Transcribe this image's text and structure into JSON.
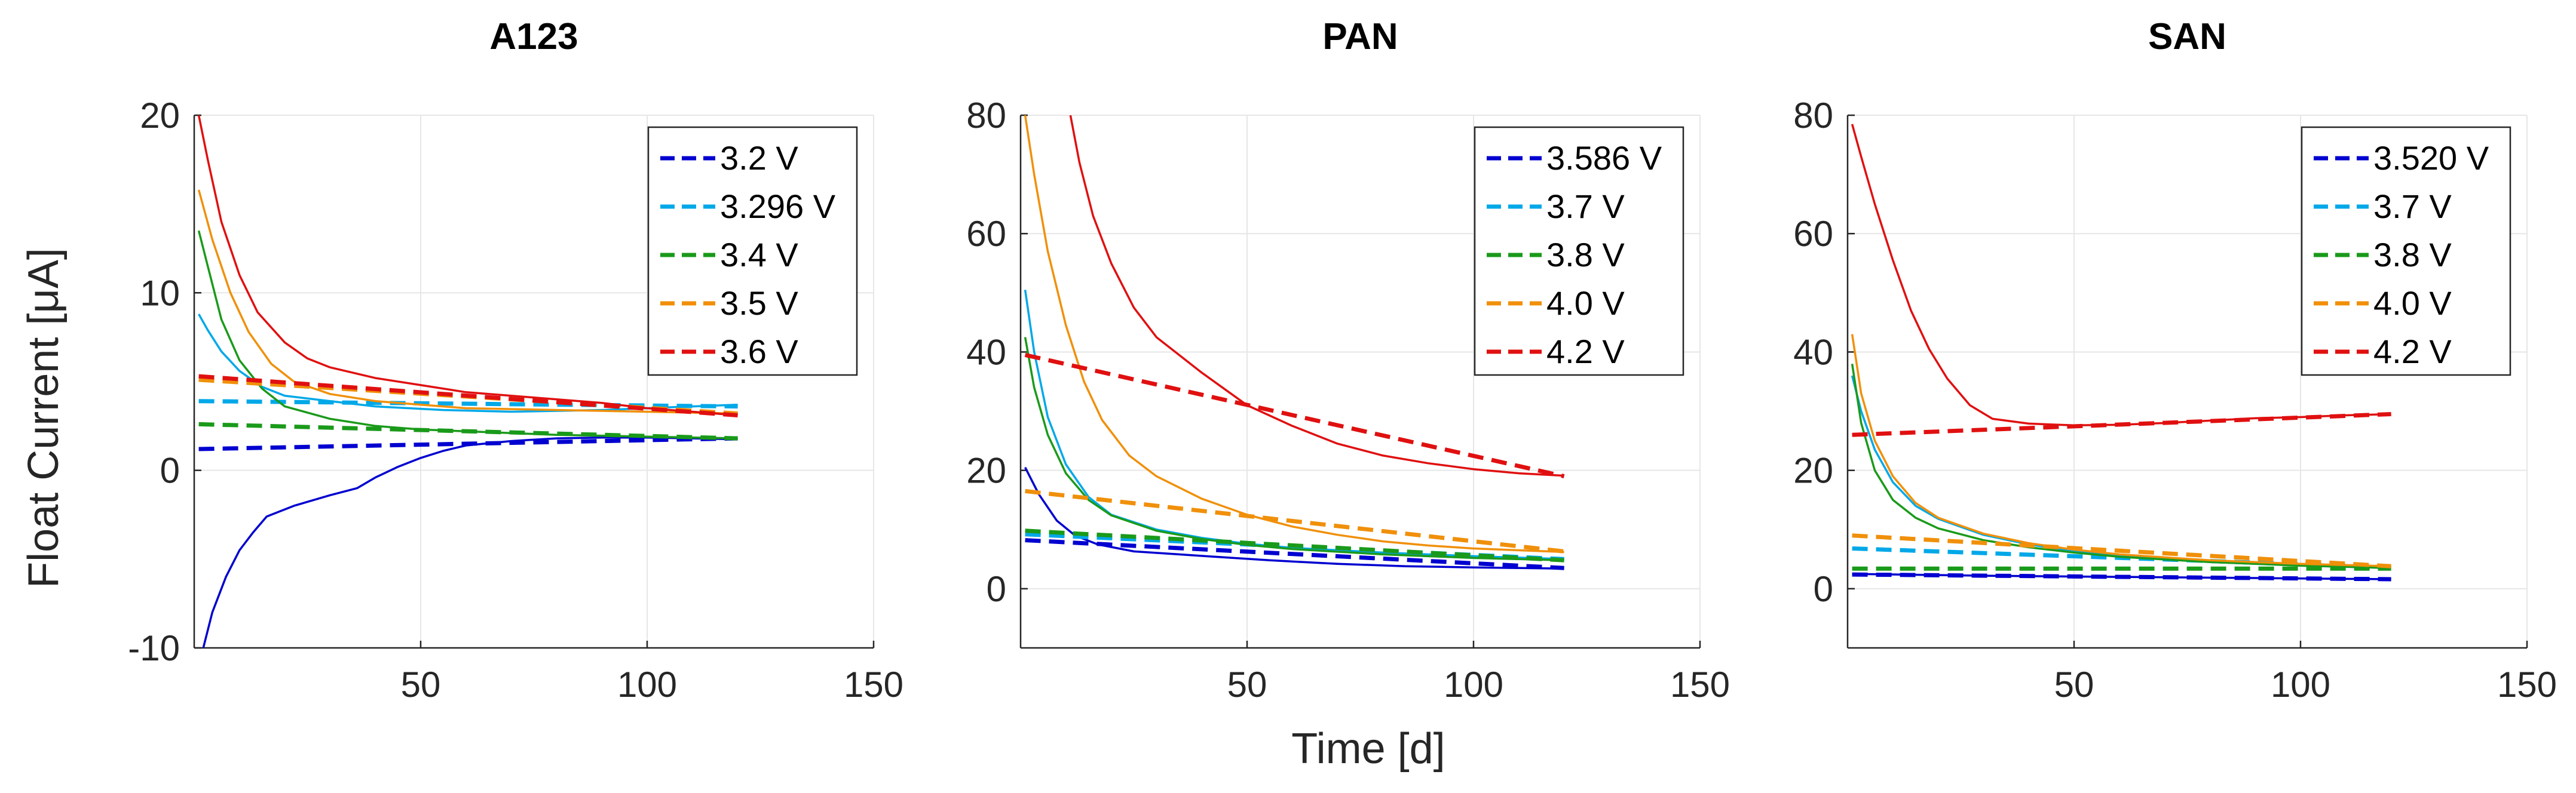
{
  "figure": {
    "xlabel": "Time [d]",
    "ylabel": "Float Current [μA]"
  },
  "chart_data": [
    {
      "type": "line",
      "title": "A123",
      "xlim": [
        0,
        150
      ],
      "ylim": [
        -10,
        20
      ],
      "xticks": [
        50,
        100,
        150
      ],
      "yticks": [
        -10,
        0,
        10,
        20
      ],
      "grid": true,
      "legend_position": "top-right",
      "series": [
        {
          "name": "3.2 V",
          "color": "#0000d0",
          "fit": [
            [
              1,
              1.2
            ],
            [
              120,
              1.8
            ]
          ],
          "measured": [
            [
              2,
              -10
            ],
            [
              4,
              -8
            ],
            [
              7,
              -6
            ],
            [
              10,
              -4.5
            ],
            [
              13,
              -3.5
            ],
            [
              16,
              -2.6
            ],
            [
              22,
              -2.0
            ],
            [
              30,
              -1.4
            ],
            [
              36,
              -1.0
            ],
            [
              40,
              -0.4
            ],
            [
              45,
              0.2
            ],
            [
              50,
              0.7
            ],
            [
              55,
              1.1
            ],
            [
              60,
              1.4
            ],
            [
              70,
              1.65
            ],
            [
              80,
              1.8
            ],
            [
              90,
              1.85
            ],
            [
              100,
              1.85
            ],
            [
              110,
              1.8
            ],
            [
              120,
              1.75
            ]
          ]
        },
        {
          "name": "3.296 V",
          "color": "#00a8e8",
          "fit": [
            [
              1,
              3.9
            ],
            [
              120,
              3.6
            ]
          ],
          "measured": [
            [
              1,
              8.8
            ],
            [
              3,
              7.9
            ],
            [
              6,
              6.7
            ],
            [
              10,
              5.6
            ],
            [
              15,
              4.7
            ],
            [
              20,
              4.2
            ],
            [
              30,
              3.9
            ],
            [
              40,
              3.6
            ],
            [
              55,
              3.4
            ],
            [
              70,
              3.3
            ],
            [
              90,
              3.4
            ],
            [
              100,
              3.5
            ],
            [
              110,
              3.6
            ],
            [
              120,
              3.7
            ]
          ]
        },
        {
          "name": "3.4 V",
          "color": "#1a9a1a",
          "fit": [
            [
              1,
              2.6
            ],
            [
              120,
              1.8
            ]
          ],
          "measured": [
            [
              1,
              13.5
            ],
            [
              3,
              11.5
            ],
            [
              6,
              8.5
            ],
            [
              10,
              6.2
            ],
            [
              15,
              4.6
            ],
            [
              20,
              3.6
            ],
            [
              30,
              2.9
            ],
            [
              40,
              2.5
            ],
            [
              50,
              2.3
            ],
            [
              60,
              2.2
            ],
            [
              80,
              2.0
            ],
            [
              100,
              1.9
            ],
            [
              120,
              1.8
            ]
          ]
        },
        {
          "name": "3.5 V",
          "color": "#f0900a",
          "fit": [
            [
              1,
              5.1
            ],
            [
              120,
              3.2
            ]
          ],
          "measured": [
            [
              1,
              15.8
            ],
            [
              4,
              13.0
            ],
            [
              8,
              10.0
            ],
            [
              12,
              7.8
            ],
            [
              17,
              6.0
            ],
            [
              22,
              5.0
            ],
            [
              30,
              4.3
            ],
            [
              40,
              3.9
            ],
            [
              50,
              3.7
            ],
            [
              60,
              3.5
            ],
            [
              80,
              3.4
            ],
            [
              100,
              3.3
            ],
            [
              120,
              3.2
            ]
          ]
        },
        {
          "name": "3.6 V",
          "color": "#e01010",
          "fit": [
            [
              1,
              5.3
            ],
            [
              120,
              3.1
            ]
          ],
          "measured": [
            [
              1,
              20
            ],
            [
              3,
              17.5
            ],
            [
              6,
              14.0
            ],
            [
              10,
              11.0
            ],
            [
              14,
              8.9
            ],
            [
              20,
              7.2
            ],
            [
              25,
              6.3
            ],
            [
              30,
              5.8
            ],
            [
              40,
              5.2
            ],
            [
              50,
              4.8
            ],
            [
              60,
              4.4
            ],
            [
              70,
              4.2
            ],
            [
              80,
              4.0
            ],
            [
              90,
              3.8
            ],
            [
              100,
              3.5
            ],
            [
              110,
              3.3
            ],
            [
              120,
              3.1
            ]
          ]
        }
      ]
    },
    {
      "type": "line",
      "title": "PAN",
      "xlim": [
        0,
        150
      ],
      "ylim": [
        -10,
        80
      ],
      "xticks": [
        50,
        100,
        150
      ],
      "yticks": [
        0,
        20,
        40,
        60,
        80
      ],
      "grid": true,
      "legend_position": "top-right",
      "series": [
        {
          "name": "3.586 V",
          "color": "#0000d0",
          "fit": [
            [
              1,
              8.2
            ],
            [
              120,
              3.5
            ]
          ],
          "measured": [
            [
              1,
              20.5
            ],
            [
              4,
              16
            ],
            [
              8,
              11.5
            ],
            [
              12,
              9
            ],
            [
              17,
              7.5
            ],
            [
              25,
              6.3
            ],
            [
              35,
              5.8
            ],
            [
              45,
              5.3
            ],
            [
              55,
              4.8
            ],
            [
              70,
              4.2
            ],
            [
              85,
              3.8
            ],
            [
              100,
              3.6
            ],
            [
              120,
              3.4
            ]
          ]
        },
        {
          "name": "3.7 V",
          "color": "#00a8e8",
          "fit": [
            [
              1,
              9.2
            ],
            [
              120,
              5.0
            ]
          ],
          "measured": [
            [
              1,
              50.5
            ],
            [
              3,
              40
            ],
            [
              6,
              29
            ],
            [
              10,
              21
            ],
            [
              15,
              15.5
            ],
            [
              20,
              12.5
            ],
            [
              30,
              10
            ],
            [
              40,
              8.6
            ],
            [
              50,
              7.6
            ],
            [
              60,
              6.9
            ],
            [
              80,
              6.1
            ],
            [
              100,
              5.5
            ],
            [
              120,
              5.0
            ]
          ]
        },
        {
          "name": "3.8 V",
          "color": "#1a9a1a",
          "fit": [
            [
              1,
              9.8
            ],
            [
              120,
              4.8
            ]
          ],
          "measured": [
            [
              1,
              42.5
            ],
            [
              3,
              34
            ],
            [
              6,
              26
            ],
            [
              10,
              19.5
            ],
            [
              15,
              15
            ],
            [
              20,
              12.4
            ],
            [
              30,
              9.8
            ],
            [
              40,
              8.4
            ],
            [
              50,
              7.4
            ],
            [
              60,
              6.7
            ],
            [
              80,
              5.8
            ],
            [
              100,
              5.2
            ],
            [
              120,
              4.8
            ]
          ]
        },
        {
          "name": "4.0 V",
          "color": "#f0900a",
          "fit": [
            [
              1,
              16.5
            ],
            [
              120,
              6.3
            ]
          ],
          "measured": [
            [
              1,
              80
            ],
            [
              3,
              70
            ],
            [
              6,
              57
            ],
            [
              10,
              44.5
            ],
            [
              14,
              35
            ],
            [
              18,
              28.5
            ],
            [
              24,
              22.5
            ],
            [
              30,
              19
            ],
            [
              40,
              15.2
            ],
            [
              50,
              12.5
            ],
            [
              60,
              10.5
            ],
            [
              70,
              9.1
            ],
            [
              80,
              8.0
            ],
            [
              90,
              7.3
            ],
            [
              100,
              6.8
            ],
            [
              110,
              6.5
            ],
            [
              120,
              6.2
            ]
          ]
        },
        {
          "name": "4.2 V",
          "color": "#e01010",
          "fit": [
            [
              1,
              39.5
            ],
            [
              120,
              19
            ]
          ],
          "measured": [
            [
              11,
              80
            ],
            [
              13,
              72
            ],
            [
              16,
              63
            ],
            [
              20,
              55
            ],
            [
              25,
              47.5
            ],
            [
              30,
              42.5
            ],
            [
              40,
              36.5
            ],
            [
              50,
              31
            ],
            [
              60,
              27.5
            ],
            [
              70,
              24.5
            ],
            [
              80,
              22.5
            ],
            [
              90,
              21.2
            ],
            [
              100,
              20.2
            ],
            [
              110,
              19.5
            ],
            [
              120,
              19.1
            ]
          ]
        }
      ]
    },
    {
      "type": "line",
      "title": "SAN",
      "xlim": [
        0,
        150
      ],
      "ylim": [
        -10,
        80
      ],
      "xticks": [
        50,
        100,
        150
      ],
      "yticks": [
        0,
        20,
        40,
        60,
        80
      ],
      "grid": true,
      "legend_position": "top-right",
      "series": [
        {
          "name": "3.520 V",
          "color": "#0000d0",
          "fit": [
            [
              1,
              2.4
            ],
            [
              120,
              1.6
            ]
          ],
          "measured": [
            [
              1,
              2.5
            ],
            [
              30,
              2.2
            ],
            [
              60,
              2.0
            ],
            [
              90,
              1.8
            ],
            [
              120,
              1.6
            ]
          ]
        },
        {
          "name": "3.7 V",
          "color": "#00a8e8",
          "fit": [
            [
              1,
              6.8
            ],
            [
              120,
              3.6
            ]
          ],
          "measured": [
            [
              1,
              36
            ],
            [
              3,
              30
            ],
            [
              6,
              23.5
            ],
            [
              10,
              18
            ],
            [
              15,
              14
            ],
            [
              20,
              11.8
            ],
            [
              30,
              9.1
            ],
            [
              40,
              7.5
            ],
            [
              50,
              6.3
            ],
            [
              60,
              5.5
            ],
            [
              80,
              4.5
            ],
            [
              100,
              3.9
            ],
            [
              120,
              3.5
            ]
          ]
        },
        {
          "name": "3.8 V",
          "color": "#1a9a1a",
          "fit": [
            [
              1,
              3.4
            ],
            [
              120,
              3.4
            ]
          ],
          "measured": [
            [
              1,
              38
            ],
            [
              3,
              28
            ],
            [
              6,
              20
            ],
            [
              10,
              15
            ],
            [
              15,
              12
            ],
            [
              20,
              10.2
            ],
            [
              30,
              8.2
            ],
            [
              40,
              7.0
            ],
            [
              50,
              6.1
            ],
            [
              60,
              5.4
            ],
            [
              80,
              4.5
            ],
            [
              100,
              3.9
            ],
            [
              120,
              3.5
            ]
          ]
        },
        {
          "name": "4.0 V",
          "color": "#f0900a",
          "fit": [
            [
              1,
              9
            ],
            [
              120,
              3.8
            ]
          ],
          "measured": [
            [
              1,
              43
            ],
            [
              3,
              33
            ],
            [
              6,
              25
            ],
            [
              10,
              19
            ],
            [
              15,
              14.5
            ],
            [
              20,
              12
            ],
            [
              30,
              9.3
            ],
            [
              40,
              7.7
            ],
            [
              50,
              6.6
            ],
            [
              60,
              5.8
            ],
            [
              80,
              4.8
            ],
            [
              100,
              4.2
            ],
            [
              120,
              3.8
            ]
          ]
        },
        {
          "name": "4.2 V",
          "color": "#e01010",
          "fit": [
            [
              1,
              26
            ],
            [
              120,
              29.5
            ]
          ],
          "measured": [
            [
              1,
              78.5
            ],
            [
              3,
              73
            ],
            [
              6,
              65
            ],
            [
              10,
              55.5
            ],
            [
              14,
              47
            ],
            [
              18,
              40.5
            ],
            [
              22,
              35.5
            ],
            [
              27,
              31
            ],
            [
              32,
              28.7
            ],
            [
              40,
              27.9
            ],
            [
              50,
              27.6
            ],
            [
              60,
              27.7
            ],
            [
              70,
              28.0
            ],
            [
              80,
              28.4
            ],
            [
              90,
              28.8
            ],
            [
              100,
              29.0
            ],
            [
              110,
              29.3
            ],
            [
              120,
              29.5
            ]
          ]
        }
      ]
    }
  ]
}
